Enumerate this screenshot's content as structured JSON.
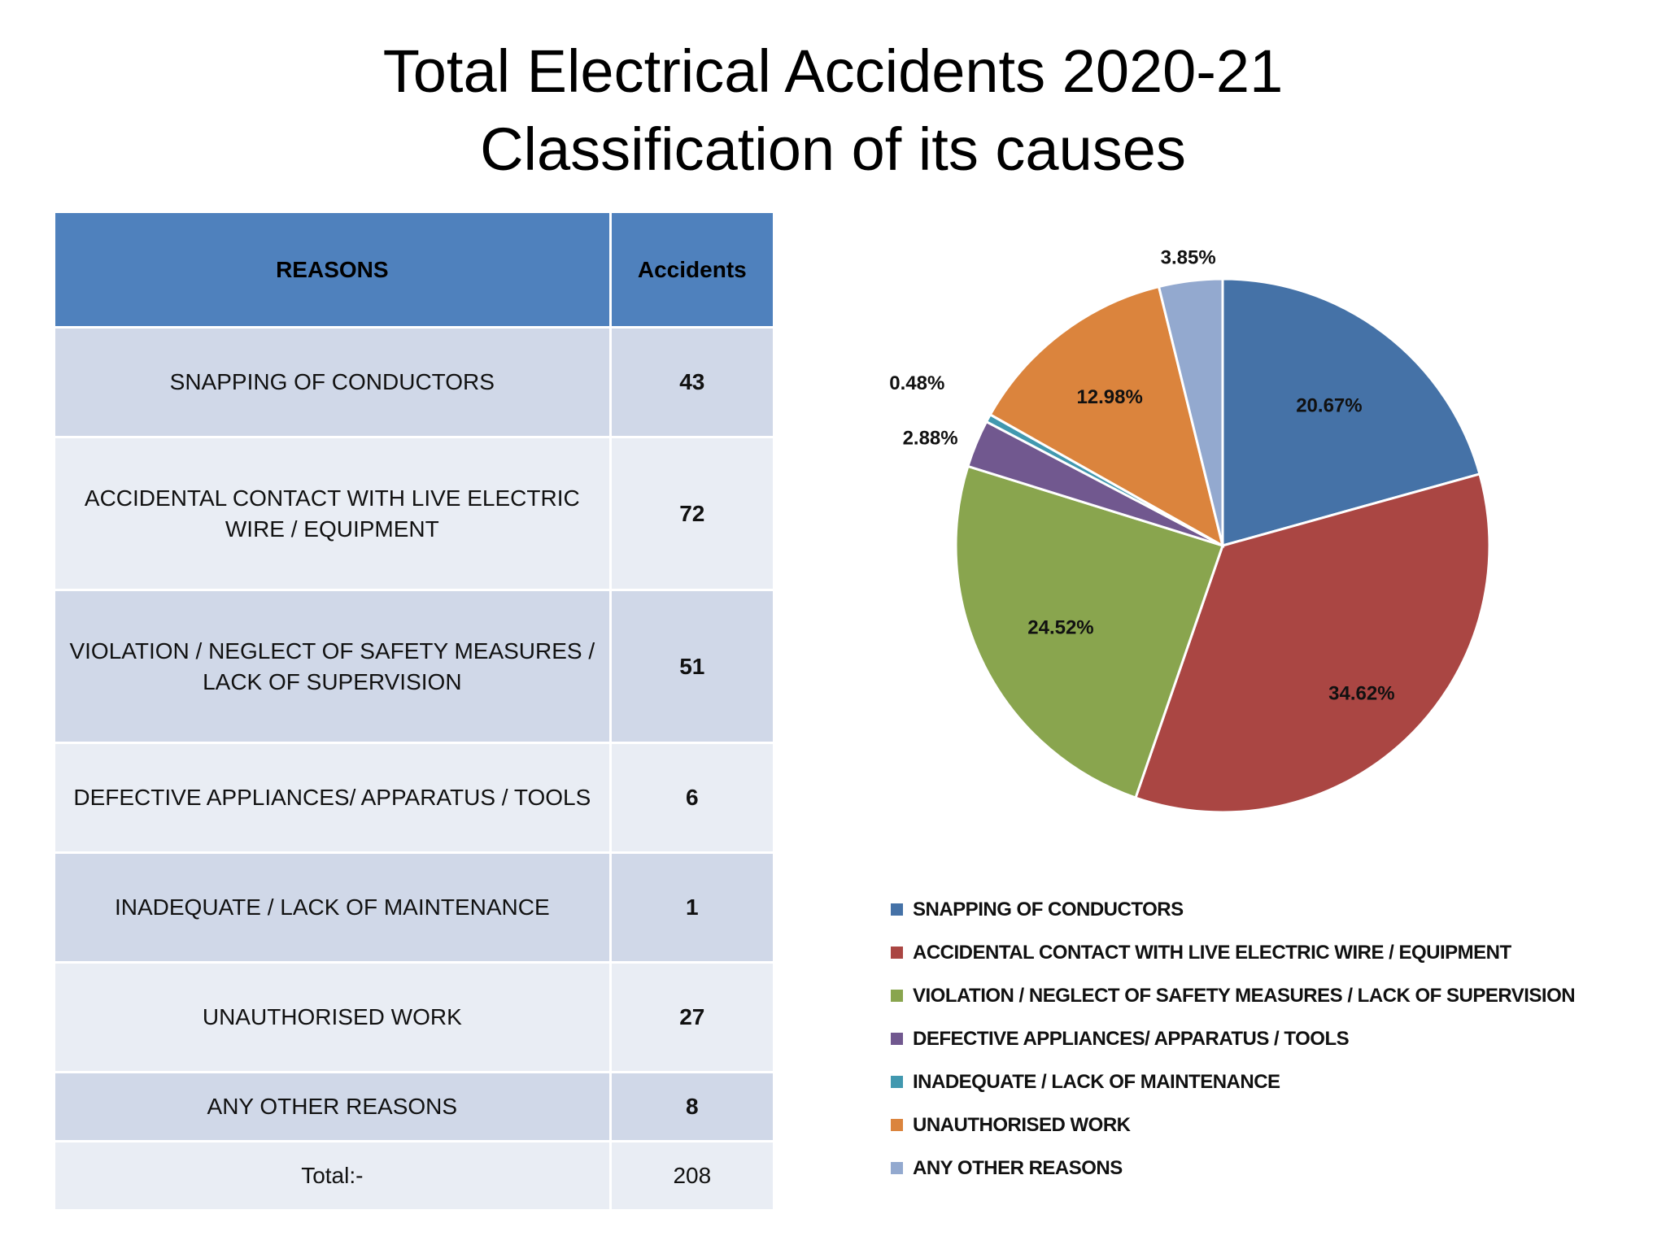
{
  "title": {
    "line1": "Total Electrical Accidents 2020-21",
    "line2": "Classification of its causes"
  },
  "table": {
    "headers": [
      "REASONS",
      "Accidents"
    ],
    "rows": [
      {
        "reason": "SNAPPING OF CONDUCTORS",
        "accidents": "43"
      },
      {
        "reason": "ACCIDENTAL CONTACT WITH LIVE ELECTRIC WIRE / EQUIPMENT",
        "accidents": "72"
      },
      {
        "reason": "VIOLATION / NEGLECT OF SAFETY MEASURES / LACK OF SUPERVISION",
        "accidents": "51"
      },
      {
        "reason": "DEFECTIVE APPLIANCES/ APPARATUS / TOOLS",
        "accidents": "6"
      },
      {
        "reason": "INADEQUATE / LACK OF MAINTENANCE",
        "accidents": "1"
      },
      {
        "reason": "UNAUTHORISED WORK",
        "accidents": "27"
      },
      {
        "reason": "ANY OTHER REASONS",
        "accidents": "8"
      }
    ],
    "total_label": "Total:-",
    "total_value": "208"
  },
  "chart_data": {
    "type": "pie",
    "categories": [
      "SNAPPING OF CONDUCTORS",
      "ACCIDENTAL CONTACT WITH LIVE ELECTRIC WIRE / EQUIPMENT",
      "VIOLATION / NEGLECT OF SAFETY MEASURES / LACK OF SUPERVISION",
      "DEFECTIVE APPLIANCES/ APPARATUS / TOOLS",
      "INADEQUATE / LACK OF MAINTENANCE",
      "UNAUTHORISED WORK",
      "ANY OTHER REASONS"
    ],
    "values": [
      43,
      72,
      51,
      6,
      1,
      27,
      8
    ],
    "labels": [
      "20.67%",
      "34.62%",
      "24.52%",
      "2.88%",
      "0.48%",
      "12.98%",
      "3.85%"
    ],
    "colors": [
      "#4572a7",
      "#aa4643",
      "#89a54e",
      "#71588f",
      "#4198af",
      "#db843d",
      "#93a9cf"
    ],
    "legend_position": "bottom"
  }
}
